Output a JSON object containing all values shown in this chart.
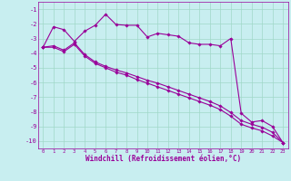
{
  "line1_x": [
    0,
    1,
    2,
    3,
    4,
    5,
    6,
    7,
    8,
    9,
    10,
    11,
    12,
    13,
    14,
    15,
    16,
    17,
    18,
    19,
    20,
    21,
    22,
    23
  ],
  "line1_y": [
    -3.6,
    -2.2,
    -2.4,
    -3.2,
    -2.5,
    -2.1,
    -1.35,
    -2.05,
    -2.1,
    -2.1,
    -2.9,
    -2.65,
    -2.75,
    -2.85,
    -3.3,
    -3.4,
    -3.4,
    -3.5,
    -3.0,
    -8.1,
    -8.7,
    -8.6,
    -9.0,
    -10.1
  ],
  "line2_x": [
    0,
    1,
    2,
    3,
    4,
    5,
    6,
    7,
    8,
    9,
    10,
    11,
    12,
    13,
    14,
    15,
    16,
    17,
    18,
    19,
    20,
    21,
    22,
    23
  ],
  "line2_y": [
    -3.6,
    -3.5,
    -3.8,
    -3.3,
    -4.1,
    -4.6,
    -4.9,
    -5.15,
    -5.35,
    -5.6,
    -5.85,
    -6.05,
    -6.3,
    -6.55,
    -6.8,
    -7.05,
    -7.3,
    -7.6,
    -8.05,
    -8.6,
    -8.85,
    -9.05,
    -9.4,
    -10.1
  ],
  "line3_x": [
    0,
    1,
    2,
    3,
    4,
    5,
    6,
    7,
    8,
    9,
    10,
    11,
    12,
    13,
    14,
    15,
    16,
    17,
    18,
    19,
    20,
    21,
    22,
    23
  ],
  "line3_y": [
    -3.6,
    -3.6,
    -3.9,
    -3.4,
    -4.2,
    -4.7,
    -5.0,
    -5.3,
    -5.5,
    -5.8,
    -6.05,
    -6.3,
    -6.55,
    -6.8,
    -7.05,
    -7.3,
    -7.55,
    -7.85,
    -8.3,
    -8.85,
    -9.1,
    -9.3,
    -9.65,
    -10.1
  ],
  "line_color": "#990099",
  "bg_color": "#c8eef0",
  "grid_color": "#a0d8c8",
  "xlabel": "Windchill (Refroidissement éolien,°C)",
  "xlim_min": -0.5,
  "xlim_max": 23.5,
  "ylim_min": -10.5,
  "ylim_max": -0.5,
  "yticks": [
    -10,
    -9,
    -8,
    -7,
    -6,
    -5,
    -4,
    -3,
    -2,
    -1
  ],
  "xticks": [
    0,
    1,
    2,
    3,
    4,
    5,
    6,
    7,
    8,
    9,
    10,
    11,
    12,
    13,
    14,
    15,
    16,
    17,
    18,
    19,
    20,
    21,
    22,
    23
  ],
  "marker": "D",
  "markersize": 1.8,
  "linewidth": 0.8
}
